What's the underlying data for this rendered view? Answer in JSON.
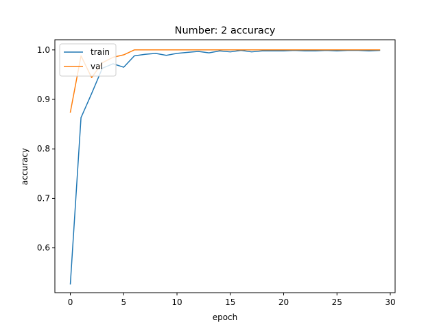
{
  "chart_data": {
    "type": "line",
    "title": "Number: 2 accuracy",
    "xlabel": "epoch",
    "ylabel": "accuracy",
    "xlim": [
      -1.45,
      30.45
    ],
    "ylim": [
      0.5095,
      1.0205
    ],
    "xticks": [
      0,
      5,
      10,
      15,
      20,
      25,
      30
    ],
    "yticks": [
      0.6,
      0.7,
      0.8,
      0.9,
      1.0
    ],
    "xtick_labels": [
      "0",
      "5",
      "10",
      "15",
      "20",
      "25",
      "30"
    ],
    "ytick_labels": [
      "0.6",
      "0.7",
      "0.8",
      "0.9",
      "1.0"
    ],
    "legend_position": "upper-left",
    "grid": false,
    "x": [
      0,
      1,
      2,
      3,
      4,
      5,
      6,
      7,
      8,
      9,
      10,
      11,
      12,
      13,
      14,
      15,
      16,
      17,
      18,
      19,
      20,
      21,
      22,
      23,
      24,
      25,
      26,
      27,
      28,
      29
    ],
    "series": [
      {
        "name": "train",
        "color": "#1f77b4",
        "values": [
          0.527,
          0.863,
          0.912,
          0.963,
          0.972,
          0.965,
          0.988,
          0.991,
          0.993,
          0.989,
          0.993,
          0.995,
          0.997,
          0.994,
          0.998,
          0.996,
          0.999,
          0.996,
          0.998,
          0.998,
          0.998,
          0.999,
          0.998,
          0.998,
          0.999,
          0.998,
          0.999,
          0.999,
          0.998,
          0.999
        ]
      },
      {
        "name": "val",
        "color": "#ff7f0e",
        "values": [
          0.874,
          0.988,
          0.944,
          0.974,
          0.985,
          0.99,
          1.0,
          1.0,
          1.0,
          1.0,
          1.0,
          1.0,
          1.0,
          1.0,
          1.0,
          1.0,
          1.0,
          1.0,
          1.0,
          1.0,
          1.0,
          1.0,
          1.0,
          1.0,
          1.0,
          1.0,
          1.0,
          1.0,
          1.0,
          1.0
        ]
      }
    ]
  }
}
